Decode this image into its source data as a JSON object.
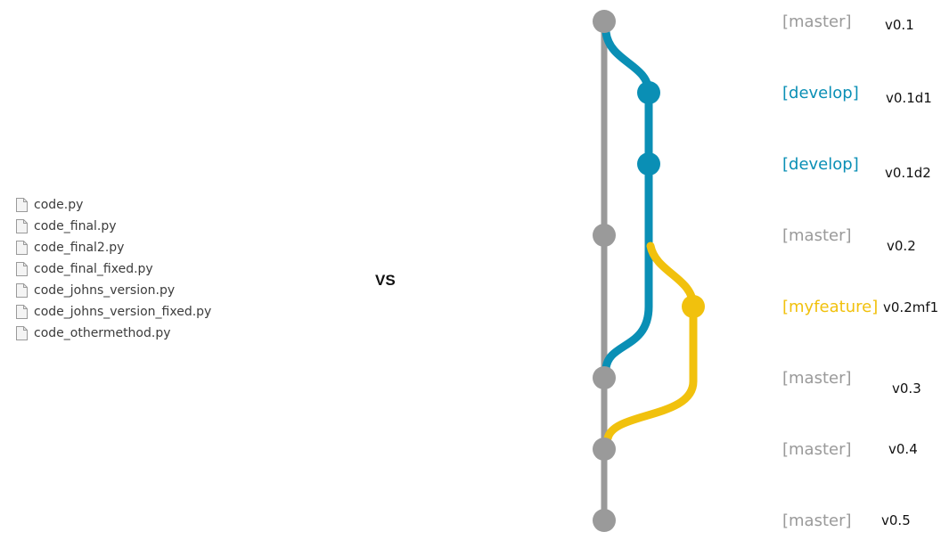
{
  "files": [
    {
      "name": "code.py",
      "icon": "file-icon"
    },
    {
      "name": "code_final.py",
      "icon": "file-icon"
    },
    {
      "name": "code_final2.py",
      "icon": "file-icon"
    },
    {
      "name": "code_final_fixed.py",
      "icon": "file-icon"
    },
    {
      "name": "code_johns_version.py",
      "icon": "file-icon"
    },
    {
      "name": "code_johns_version_fixed.py",
      "icon": "file-icon"
    },
    {
      "name": "code_othermethod.py",
      "icon": "file-icon"
    }
  ],
  "vs_label": "VS",
  "colors": {
    "master": "#9a9a9a",
    "develop": "#0a8fb5",
    "myfeature": "#f1c10d"
  },
  "commits": [
    {
      "branch": "master",
      "label": "[master]",
      "version": "v0.1"
    },
    {
      "branch": "develop",
      "label": "[develop]",
      "version": "v0.1d1"
    },
    {
      "branch": "develop",
      "label": "[develop]",
      "version": "v0.1d2"
    },
    {
      "branch": "master",
      "label": "[master]",
      "version": "v0.2"
    },
    {
      "branch": "myfeature",
      "label": "[myfeature]",
      "version": "v0.2mf1"
    },
    {
      "branch": "master",
      "label": "[master]",
      "version": "v0.3"
    },
    {
      "branch": "master",
      "label": "[master]",
      "version": "v0.4"
    },
    {
      "branch": "master",
      "label": "[master]",
      "version": "v0.5"
    }
  ]
}
